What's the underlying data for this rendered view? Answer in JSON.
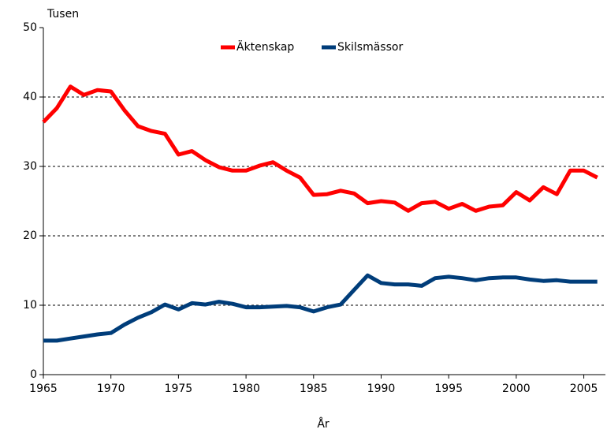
{
  "chart_data": {
    "type": "line",
    "y_axis_label": "Tusen",
    "x_axis_label": "År",
    "x": [
      1965,
      1966,
      1967,
      1968,
      1969,
      1970,
      1971,
      1972,
      1973,
      1974,
      1975,
      1976,
      1977,
      1978,
      1979,
      1980,
      1981,
      1982,
      1983,
      1984,
      1985,
      1986,
      1987,
      1988,
      1989,
      1990,
      1991,
      1992,
      1993,
      1994,
      1995,
      1996,
      1997,
      1998,
      1999,
      2000,
      2001,
      2002,
      2003,
      2004,
      2005,
      2006
    ],
    "series": [
      {
        "name": "Äktenskap",
        "color": "#ff0000",
        "values": [
          36.4,
          38.4,
          41.5,
          40.3,
          41.0,
          40.8,
          38.1,
          35.8,
          35.1,
          34.7,
          31.7,
          32.2,
          30.9,
          29.9,
          29.4,
          29.4,
          30.1,
          30.6,
          29.4,
          28.4,
          25.9,
          26.0,
          26.5,
          26.1,
          24.7,
          25.0,
          24.8,
          23.6,
          24.7,
          24.9,
          23.9,
          24.6,
          23.6,
          24.2,
          24.4,
          26.3,
          25.1,
          27.0,
          26.0,
          29.4,
          29.4,
          28.4
        ]
      },
      {
        "name": "Skilsmässor",
        "color": "#003d7a",
        "values": [
          4.9,
          4.9,
          5.2,
          5.5,
          5.8,
          6.0,
          7.2,
          8.2,
          9.0,
          10.1,
          9.4,
          10.3,
          10.1,
          10.5,
          10.2,
          9.7,
          9.7,
          9.8,
          9.9,
          9.7,
          9.1,
          9.7,
          10.1,
          12.2,
          14.3,
          13.2,
          13.0,
          13.0,
          12.8,
          13.9,
          14.1,
          13.9,
          13.6,
          13.9,
          14.0,
          14.0,
          13.7,
          13.5,
          13.6,
          13.4,
          13.4,
          13.4
        ]
      }
    ],
    "xlim": [
      1965,
      2006.6
    ],
    "xticks": [
      1965,
      1970,
      1975,
      1980,
      1985,
      1990,
      1995,
      2000,
      2005
    ],
    "ylim": [
      0,
      50
    ],
    "yticks": [
      0,
      10,
      20,
      30,
      40,
      50
    ],
    "grid": true,
    "legend": "top"
  }
}
